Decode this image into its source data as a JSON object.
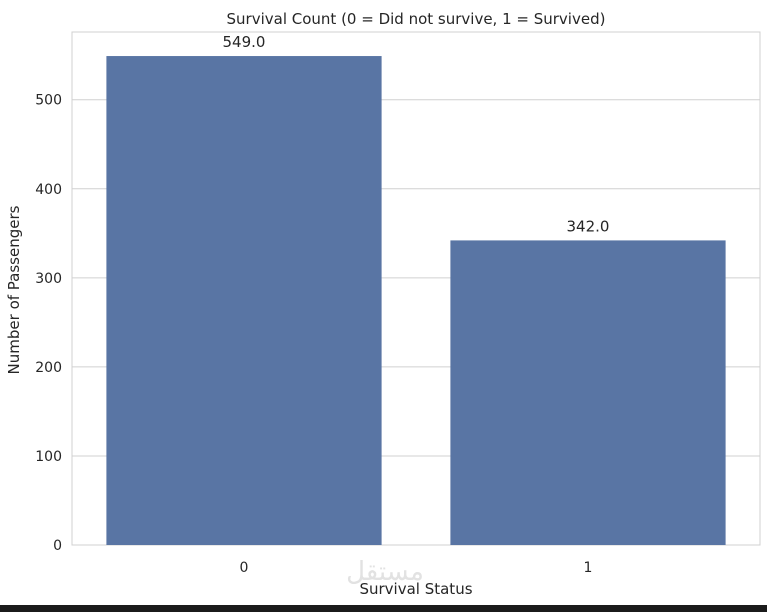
{
  "chart_data": {
    "type": "bar",
    "title": "Survival Count (0 = Did not survive, 1 = Survived)",
    "xlabel": "Survival Status",
    "ylabel": "Number of Passengers",
    "categories": [
      "0",
      "1"
    ],
    "values": [
      549,
      342
    ],
    "value_labels": [
      "549.0",
      "342.0"
    ],
    "yticks": [
      0,
      100,
      200,
      300,
      400,
      500
    ],
    "ylim": [
      0,
      576
    ],
    "grid": "horizontal",
    "bar_color": "#5975a4"
  },
  "watermark": "مستقل"
}
